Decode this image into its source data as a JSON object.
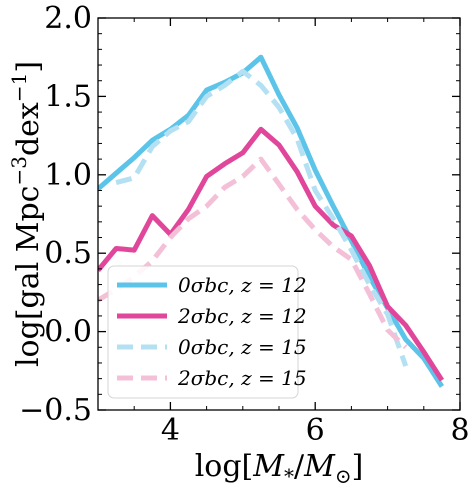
{
  "chart_data": {
    "type": "line",
    "xlabel": "log[M*/M⊙]",
    "ylabel": "log[gal Mpc⁻³dex⁻¹]",
    "xlim": [
      3.0,
      8.0
    ],
    "ylim": [
      -0.5,
      2.0
    ],
    "xticks": [
      4,
      6,
      8
    ],
    "xtick_labels": [
      "4",
      "6",
      "8"
    ],
    "yticks": [
      -0.5,
      0.0,
      0.5,
      1.0,
      1.5,
      2.0
    ],
    "ytick_labels": [
      "−0.5",
      "0.0",
      "0.5",
      "1.0",
      "1.5",
      "2.0"
    ],
    "grid": false,
    "legend_position": "lower-left",
    "series": [
      {
        "name": "0σbc, z = 12",
        "color": "#5bc4e8",
        "style": "solid",
        "x": [
          3.0,
          3.25,
          3.5,
          3.75,
          4.0,
          4.25,
          4.5,
          4.75,
          5.0,
          5.25,
          5.5,
          5.75,
          6.0,
          6.25,
          6.5,
          6.75,
          7.0,
          7.25,
          7.5,
          7.75
        ],
        "y": [
          0.91,
          1.01,
          1.11,
          1.22,
          1.29,
          1.38,
          1.54,
          1.59,
          1.65,
          1.75,
          1.51,
          1.3,
          1.03,
          0.8,
          0.58,
          0.35,
          0.15,
          -0.05,
          -0.17,
          -0.35
        ]
      },
      {
        "name": "2σbc, z = 12",
        "color": "#e0469a",
        "style": "solid",
        "x": [
          3.0,
          3.25,
          3.5,
          3.75,
          4.0,
          4.25,
          4.5,
          4.75,
          5.0,
          5.25,
          5.5,
          5.75,
          6.0,
          6.25,
          6.5,
          6.75,
          7.0,
          7.25,
          7.5,
          7.75
        ],
        "y": [
          0.39,
          0.53,
          0.52,
          0.74,
          0.62,
          0.78,
          0.99,
          1.07,
          1.14,
          1.29,
          1.19,
          1.02,
          0.8,
          0.68,
          0.61,
          0.42,
          0.16,
          0.04,
          -0.13,
          -0.31
        ]
      },
      {
        "name": "0σbc, z = 15",
        "color": "#b3e0f2",
        "style": "dashed",
        "x": [
          3.25,
          3.5,
          3.75,
          4.0,
          4.25,
          4.5,
          4.75,
          5.0,
          5.25,
          5.5,
          5.75,
          6.0,
          6.25,
          6.5,
          6.75,
          7.0,
          7.25
        ],
        "y": [
          0.95,
          0.98,
          1.18,
          1.28,
          1.34,
          1.5,
          1.57,
          1.66,
          1.57,
          1.43,
          1.23,
          0.9,
          0.72,
          0.52,
          0.3,
          0.11,
          -0.22
        ]
      },
      {
        "name": "2σbc, z = 15",
        "color": "#f4c0d8",
        "style": "dashed",
        "x": [
          3.0,
          3.25,
          3.5,
          3.75,
          4.0,
          4.25,
          4.5,
          4.75,
          5.0,
          5.25,
          5.5,
          5.75,
          6.0,
          6.25,
          6.5,
          6.75,
          7.0,
          7.25
        ],
        "y": [
          0.2,
          0.27,
          0.35,
          0.45,
          0.6,
          0.72,
          0.8,
          0.92,
          0.99,
          1.1,
          0.94,
          0.78,
          0.65,
          0.54,
          0.46,
          0.24,
          0.01,
          -0.1
        ]
      }
    ]
  }
}
